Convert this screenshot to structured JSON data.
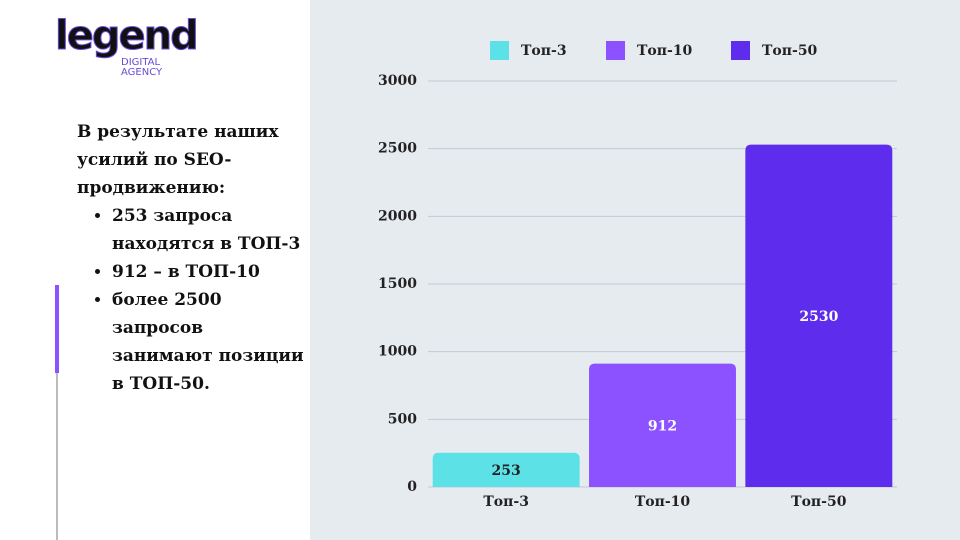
{
  "logo": {
    "name": "legend",
    "line1": "DIGITAL",
    "line2": "AGENCY"
  },
  "text": {
    "intro": "В результате наших усилий по SEO-продвижению:",
    "bullets": [
      "253 запроса находятся в ТОП-3",
      "912 – в ТОП-10",
      "более 2500 запросов занимают позиции в ТОП-50."
    ]
  },
  "chart_data": {
    "type": "bar",
    "categories": [
      "Топ-3",
      "Топ-10",
      "Топ-50"
    ],
    "values": [
      253,
      912,
      2530
    ],
    "colors": [
      "#5ce1e6",
      "#8c52ff",
      "#5e2ced"
    ],
    "ylim": [
      0,
      3000
    ],
    "yticks": [
      0,
      500,
      1000,
      1500,
      2000,
      2500,
      3000
    ],
    "grid": true,
    "legend": "top",
    "data_labels": true
  }
}
